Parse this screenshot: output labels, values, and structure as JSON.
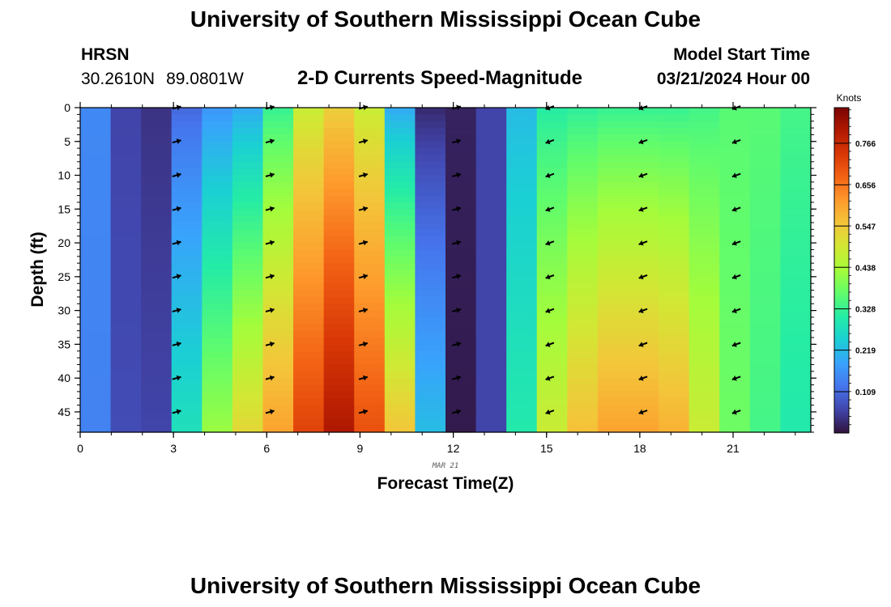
{
  "header": {
    "title": "University of Southern Mississippi Ocean Cube",
    "station": "HRSN",
    "lat": "30.2610N",
    "lon": "89.0801W",
    "subtitle": "2-D Currents Speed-Magnitude",
    "model_start_label": "Model Start Time",
    "model_start_value": "03/21/2024 Hour 00"
  },
  "footer": {
    "title": "University of Southern Mississippi Ocean Cube"
  },
  "chart_data": {
    "type": "heatmap",
    "title": "2-D Currents Speed-Magnitude",
    "xlabel": "Forecast Time(Z)",
    "ylabel": "Depth (ft)",
    "date_label": "MAR 21",
    "xlim": [
      0,
      23.5
    ],
    "ylim": [
      0,
      48
    ],
    "x_ticks": [
      "0",
      "3",
      "6",
      "9",
      "12",
      "15",
      "18",
      "21"
    ],
    "y_ticks": [
      "0",
      "5",
      "10",
      "15",
      "20",
      "25",
      "30",
      "35",
      "40",
      "45"
    ],
    "colorbar": {
      "units": "Knots",
      "range": [
        0,
        0.86
      ],
      "tick_labels": [
        "0.766",
        "0.656",
        "0.547",
        "0.438",
        "0.328",
        "0.219",
        "0.109"
      ],
      "colormap": [
        "#30123b",
        "#4145ab",
        "#4675ed",
        "#39a2fc",
        "#1bcfd4",
        "#24eca6",
        "#61fc6c",
        "#a4fc3b",
        "#d1e834",
        "#f3c63a",
        "#fe9b2d",
        "#f36315",
        "#d93806",
        "#b11901",
        "#7a0403"
      ]
    },
    "speed_knots": {
      "hours": [
        0.5,
        1.5,
        2.5,
        3.5,
        4.5,
        5.5,
        6.5,
        7.5,
        8.5,
        9.5,
        10.5,
        11.5,
        12.5,
        13.5,
        14.5,
        15.5,
        16.5,
        17.5,
        18.5,
        19.5,
        20.5,
        21.5,
        22.5,
        23.5
      ],
      "surface": [
        0.15,
        0.06,
        0.04,
        0.11,
        0.17,
        0.2,
        0.33,
        0.48,
        0.54,
        0.48,
        0.2,
        0.03,
        0.02,
        0.06,
        0.22,
        0.31,
        0.32,
        0.33,
        0.33,
        0.33,
        0.34,
        0.36,
        0.36,
        0.34
      ],
      "bottom": [
        0.14,
        0.07,
        0.06,
        0.28,
        0.42,
        0.52,
        0.6,
        0.72,
        0.8,
        0.7,
        0.55,
        0.22,
        0.01,
        0.06,
        0.3,
        0.48,
        0.56,
        0.6,
        0.6,
        0.58,
        0.48,
        0.38,
        0.34,
        0.3
      ]
    },
    "vectors": {
      "hours": [
        3,
        6,
        9,
        12,
        15,
        18,
        21
      ],
      "depths_ft": [
        0,
        5,
        10,
        15,
        20,
        25,
        30,
        35,
        40,
        45
      ],
      "direction_deg": [
        75,
        75,
        75,
        75,
        250,
        250,
        250
      ]
    }
  }
}
